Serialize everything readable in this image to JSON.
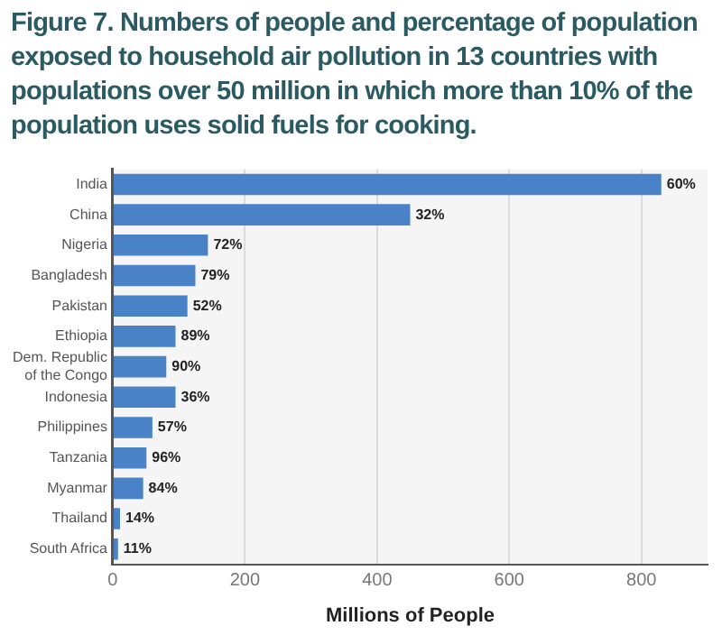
{
  "chart_data": {
    "type": "bar",
    "orientation": "horizontal",
    "title": "Figure 7. Numbers of people and percentage of population exposed to household air pollution in 13 countries with populations over 50 million in which more than 10% of the population uses solid fuels for cooking.",
    "xlabel": "Millions of People",
    "categories": [
      "India",
      "China",
      "Nigeria",
      "Bangladesh",
      "Pakistan",
      "Ethiopia",
      "Dem. Republic of the Congo",
      "Indonesia",
      "Philippines",
      "Tanzania",
      "Myanmar",
      "Thailand",
      "South Africa"
    ],
    "values": [
      830,
      450,
      144,
      125,
      113,
      95,
      81,
      95,
      60,
      51,
      46,
      11,
      8
    ],
    "annotations": [
      {
        "text": "60%",
        "x": 830,
        "y": "India"
      },
      {
        "text": "32%",
        "x": 450,
        "y": "China"
      },
      {
        "text": "72%",
        "x": 144,
        "y": "Nigeria"
      },
      {
        "text": "79%",
        "x": 125,
        "y": "Bangladesh"
      },
      {
        "text": "52%",
        "x": 113,
        "y": "Pakistan"
      },
      {
        "text": "89%",
        "x": 95,
        "y": "Ethiopia"
      },
      {
        "text": "90%",
        "x": 81,
        "y": "Dem. Republic of the Congo"
      },
      {
        "text": "36%",
        "x": 95,
        "y": "Indonesia"
      },
      {
        "text": "57%",
        "x": 60,
        "y": "Philippines"
      },
      {
        "text": "96%",
        "x": 51,
        "y": "Tanzania"
      },
      {
        "text": "84%",
        "x": 46,
        "y": "Myanmar"
      },
      {
        "text": "14%",
        "x": 11,
        "y": "Thailand"
      },
      {
        "text": "11%",
        "x": 8,
        "y": "South Africa"
      }
    ],
    "color": "#4a82c8",
    "xlim": [
      0,
      900
    ],
    "xticks": [
      0,
      200,
      400,
      600,
      800
    ],
    "grid": "x",
    "legend": false
  }
}
